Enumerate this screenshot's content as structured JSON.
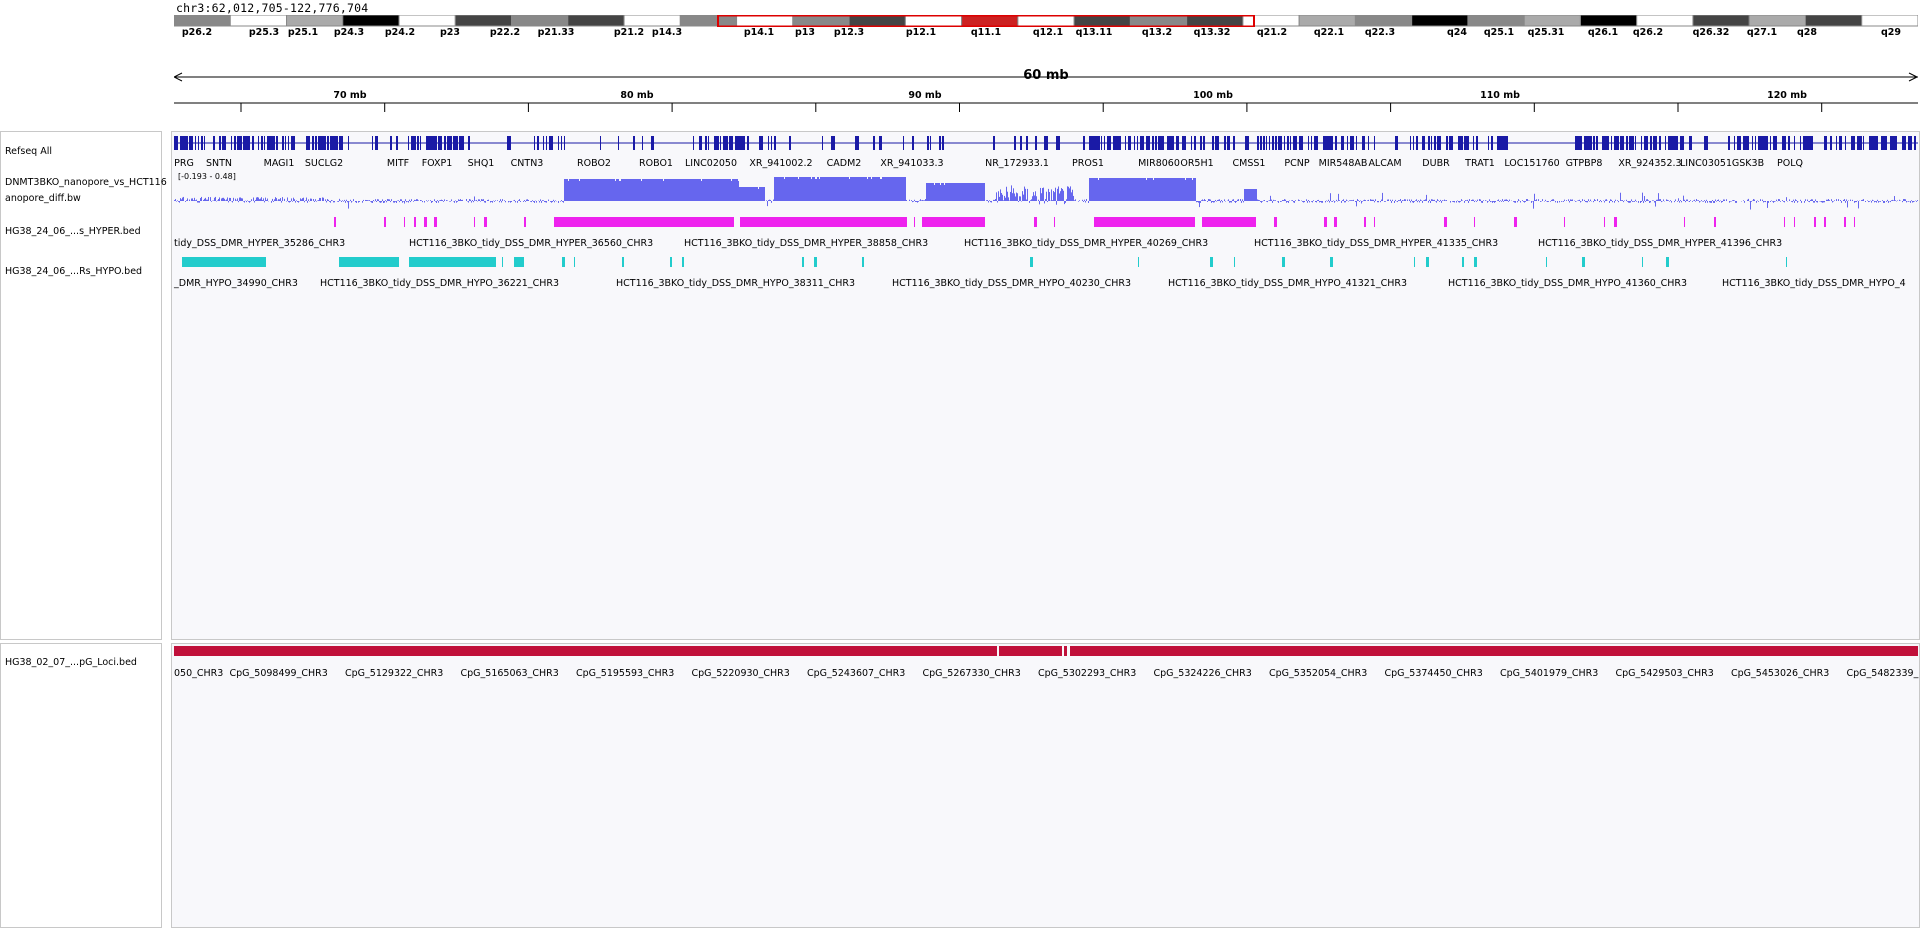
{
  "locus": "chr3:62,012,705-122,776,704",
  "ideogram": {
    "bands": [
      {
        "label": "p26.2",
        "shade": "#888888"
      },
      {
        "label": "p25.3",
        "shade": "#ffffff"
      },
      {
        "label": "p25.1",
        "shade": "#aaaaaa"
      },
      {
        "label": "p24.3",
        "shade": "#000000"
      },
      {
        "label": "p24.2",
        "shade": "#ffffff"
      },
      {
        "label": "p23",
        "shade": "#444444"
      },
      {
        "label": "p22.2",
        "shade": "#888888"
      },
      {
        "label": "p21.33",
        "shade": "#444444"
      },
      {
        "label": "p21.2",
        "shade": "#ffffff"
      },
      {
        "label": "p14.3",
        "shade": "#888888"
      },
      {
        "label": "p14.1",
        "shade": "#ffffff"
      },
      {
        "label": "p13",
        "shade": "#888888"
      },
      {
        "label": "p12.3",
        "shade": "#444444"
      },
      {
        "label": "p12.1",
        "shade": "#ffffff"
      },
      {
        "label": "q11.1",
        "shade": "#cc2222"
      },
      {
        "label": "q12.1",
        "shade": "#ffffff"
      },
      {
        "label": "q13.11",
        "shade": "#444444"
      },
      {
        "label": "q13.2",
        "shade": "#888888"
      },
      {
        "label": "q13.32",
        "shade": "#444444"
      },
      {
        "label": "q21.2",
        "shade": "#ffffff"
      },
      {
        "label": "q22.1",
        "shade": "#aaaaaa"
      },
      {
        "label": "q22.3",
        "shade": "#888888"
      },
      {
        "label": "q24",
        "shade": "#000000"
      },
      {
        "label": "q25.1",
        "shade": "#888888"
      },
      {
        "label": "q25.31",
        "shade": "#aaaaaa"
      },
      {
        "label": "q26.1",
        "shade": "#000000"
      },
      {
        "label": "q26.2",
        "shade": "#ffffff"
      },
      {
        "label": "q26.32",
        "shade": "#444444"
      },
      {
        "label": "q27.1",
        "shade": "#aaaaaa"
      },
      {
        "label": "q28",
        "shade": "#444444"
      },
      {
        "label": "q29",
        "shade": "#ffffff"
      }
    ]
  },
  "ruler": {
    "span_label": "60 mb",
    "ticks": [
      "70 mb",
      "80 mb",
      "90 mb",
      "100 mb",
      "110 mb",
      "120 mb"
    ]
  },
  "tracks": {
    "refseq": {
      "name": "Refseq All",
      "color": "#1a1aa6",
      "genes": [
        "PRG",
        "SNTN",
        "MAGI1",
        "SUCLG2",
        "MITF",
        "FOXP1",
        "SHQ1",
        "CNTN3",
        "ROBO2",
        "ROBO1",
        "LINC02050",
        "XR_941002.2",
        "CADM2",
        "XR_941033.3",
        "NR_172933.1",
        "PROS1",
        "MIR8060",
        "OR5H1",
        "CMSS1",
        "PCNP",
        "MIR548AB",
        "ALCAM",
        "DUBR",
        "TRAT1",
        "LOC151760",
        "GTPBP8",
        "XR_924352.3",
        "LINC03051",
        "GSK3B",
        "POLQ"
      ]
    },
    "bigwig": {
      "name_line1": "DNMT3BKO_nanopore_vs_HCT116",
      "name_line2": "anopore_diff.bw",
      "range": "[-0.193 - 0.48]",
      "color": "#6666ee"
    },
    "hyper": {
      "name": "HG38_24_06_...s_HYPER.bed",
      "color": "#ee22ee",
      "features": [
        "tidy_DSS_DMR_HYPER_35286_CHR3",
        "HCT116_3BKO_tidy_DSS_DMR_HYPER_36560_CHR3",
        "HCT116_3BKO_tidy_DSS_DMR_HYPER_38858_CHR3",
        "HCT116_3BKO_tidy_DSS_DMR_HYPER_40269_CHR3",
        "HCT116_3BKO_tidy_DSS_DMR_HYPER_41335_CHR3",
        "HCT116_3BKO_tidy_DSS_DMR_HYPER_41396_CHR3"
      ]
    },
    "hypo": {
      "name": "HG38_24_06_...Rs_HYPO.bed",
      "color": "#22cccc",
      "features": [
        "_DMR_HYPO_34990_CHR3",
        "HCT116_3BKO_tidy_DSS_DMR_HYPO_36221_CHR3",
        "HCT116_3BKO_tidy_DSS_DMR_HYPO_38311_CHR3",
        "HCT116_3BKO_tidy_DSS_DMR_HYPO_40230_CHR3",
        "HCT116_3BKO_tidy_DSS_DMR_HYPO_41321_CHR3",
        "HCT116_3BKO_tidy_DSS_DMR_HYPO_41360_CHR3",
        "HCT116_3BKO_tidy_DSS_DMR_HYPO_4"
      ]
    },
    "cpg": {
      "name": "HG38_02_07_...pG_Loci.bed",
      "color": "#c0103a",
      "features": [
        "050_CHR3",
        "CpG_5098499_CHR3",
        "CpG_5129322_CHR3",
        "CpG_5165063_CHR3",
        "CpG_5195593_CHR3",
        "CpG_5220930_CHR3",
        "CpG_5243607_CHR3",
        "CpG_5267330_CHR3",
        "CpG_5302293_CHR3",
        "CpG_5324226_CHR3",
        "CpG_5352054_CHR3",
        "CpG_5374450_CHR3",
        "CpG_5401979_CHR3",
        "CpG_5429503_CHR3",
        "CpG_5453026_CHR3",
        "CpG_5482339_"
      ]
    }
  }
}
